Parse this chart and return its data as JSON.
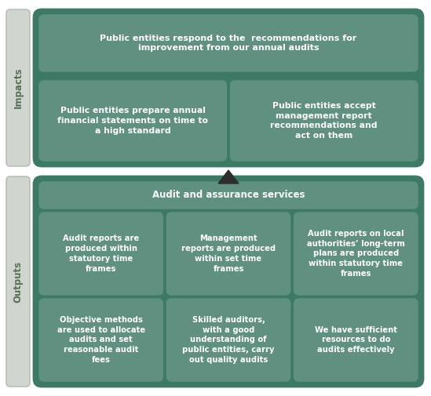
{
  "bg_color": "#ffffff",
  "dark_green": "#3d7a65",
  "mid_green": "#5f9080",
  "sidebar_color": "#d0d5d0",
  "sidebar_text_color": "#5a6e5a",
  "impacts_label": "Impacts",
  "outputs_label": "Outputs",
  "impacts_top_text": "Public entities respond to the  recommendations for\nimprovement from our annual audits",
  "impacts_bottom_left": "Public entities prepare annual\nfinancial statements on time to\na high standard",
  "impacts_bottom_right": "Public entities accept\nmanagement report\nrecommendations and\nact on them",
  "outputs_header": "Audit and assurance services",
  "outputs_top_left": "Audit reports are\nproduced within\nstatutory time\nframes",
  "outputs_top_mid": "Management\nreports are produced\nwithin set time\nframes",
  "outputs_top_right": "Audit reports on local\nauthorities’ long-term\nplans are produced\nwithin statutory time\nframes",
  "outputs_bot_left": "Objective methods\nare used to allocate\naudits and set\nreasonable audit\nfees",
  "outputs_bot_mid": "Skilled auditors,\nwith a good\nunderstanding of\npublic entities, carry\nout quality audits",
  "outputs_bot_right": "We have sufficient\nresources to do\naudits effectively"
}
